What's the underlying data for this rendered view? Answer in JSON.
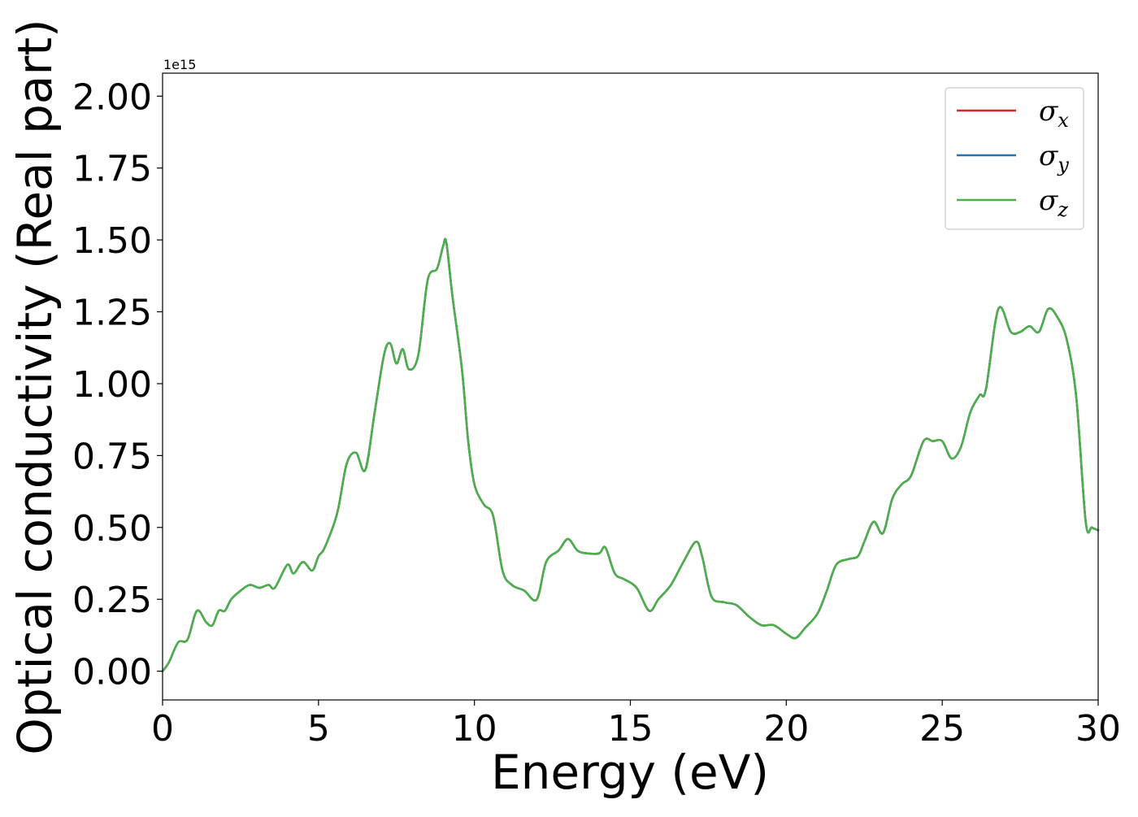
{
  "chart_data": {
    "type": "line",
    "title": "",
    "xlabel": "Energy (eV)",
    "ylabel": "Optical conductivity (Real part)",
    "y_offset_label": "1e15",
    "xlim": [
      0,
      30
    ],
    "ylim": [
      -0.1,
      2.08
    ],
    "x_ticks": [
      0,
      5,
      10,
      15,
      20,
      25,
      30
    ],
    "x_tick_labels": [
      "0",
      "5",
      "10",
      "15",
      "20",
      "25",
      "30"
    ],
    "y_ticks": [
      0,
      0.25,
      0.5,
      0.75,
      1.0,
      1.25,
      1.5,
      1.75,
      2.0
    ],
    "y_tick_labels": [
      "0.00",
      "0.25",
      "0.50",
      "0.75",
      "1.00",
      "1.25",
      "1.50",
      "1.75",
      "2.00"
    ],
    "grid": false,
    "legend_position": "top-right",
    "x": [
      0,
      0.2,
      0.5,
      0.8,
      1.1,
      1.4,
      1.6,
      1.8,
      2.0,
      2.2,
      2.5,
      2.8,
      3.1,
      3.4,
      3.6,
      4.0,
      4.2,
      4.5,
      4.8,
      5.0,
      5.2,
      5.6,
      5.9,
      6.2,
      6.5,
      6.8,
      7.1,
      7.3,
      7.5,
      7.7,
      7.9,
      8.2,
      8.5,
      8.8,
      9.0,
      9.1,
      9.3,
      9.6,
      9.8,
      10.0,
      10.3,
      10.6,
      10.9,
      11.2,
      11.6,
      12.0,
      12.3,
      12.7,
      13.0,
      13.3,
      13.6,
      14.0,
      14.2,
      14.5,
      14.8,
      15.2,
      15.6,
      15.9,
      16.3,
      16.7,
      17.1,
      17.3,
      17.6,
      18.0,
      18.4,
      18.8,
      19.2,
      19.6,
      20.0,
      20.3,
      20.6,
      21.0,
      21.3,
      21.6,
      22.0,
      22.3,
      22.5,
      22.8,
      23.1,
      23.4,
      23.7,
      24.0,
      24.4,
      24.7,
      25.0,
      25.3,
      25.6,
      25.9,
      26.2,
      26.4,
      26.8,
      27.2,
      27.5,
      27.8,
      28.1,
      28.4,
      28.7,
      29.0,
      29.3,
      29.6,
      29.8,
      30.0
    ],
    "series": [
      {
        "name": "σ_x",
        "color": "#d62728",
        "values": [
          0.0,
          0.03,
          0.1,
          0.11,
          0.21,
          0.17,
          0.16,
          0.21,
          0.21,
          0.25,
          0.28,
          0.3,
          0.29,
          0.3,
          0.29,
          0.37,
          0.34,
          0.38,
          0.35,
          0.4,
          0.43,
          0.55,
          0.72,
          0.76,
          0.7,
          0.9,
          1.1,
          1.14,
          1.07,
          1.12,
          1.05,
          1.1,
          1.36,
          1.4,
          1.48,
          1.49,
          1.3,
          1.05,
          0.8,
          0.65,
          0.58,
          0.54,
          0.35,
          0.3,
          0.28,
          0.25,
          0.38,
          0.42,
          0.46,
          0.42,
          0.41,
          0.41,
          0.43,
          0.34,
          0.32,
          0.29,
          0.21,
          0.25,
          0.3,
          0.38,
          0.45,
          0.4,
          0.26,
          0.24,
          0.23,
          0.19,
          0.16,
          0.16,
          0.13,
          0.115,
          0.15,
          0.2,
          0.28,
          0.37,
          0.39,
          0.4,
          0.45,
          0.52,
          0.48,
          0.6,
          0.65,
          0.68,
          0.8,
          0.8,
          0.8,
          0.74,
          0.78,
          0.9,
          0.96,
          0.98,
          1.26,
          1.18,
          1.18,
          1.2,
          1.18,
          1.26,
          1.23,
          1.15,
          0.95,
          0.52,
          0.5,
          0.49
        ]
      },
      {
        "name": "σ_y",
        "color": "#1f77b4",
        "values": [
          0.0,
          0.03,
          0.1,
          0.11,
          0.21,
          0.17,
          0.16,
          0.21,
          0.21,
          0.25,
          0.28,
          0.3,
          0.29,
          0.3,
          0.29,
          0.37,
          0.34,
          0.38,
          0.35,
          0.4,
          0.43,
          0.55,
          0.72,
          0.76,
          0.7,
          0.9,
          1.1,
          1.14,
          1.07,
          1.12,
          1.05,
          1.1,
          1.36,
          1.4,
          1.48,
          1.49,
          1.3,
          1.05,
          0.8,
          0.65,
          0.58,
          0.54,
          0.35,
          0.3,
          0.28,
          0.25,
          0.38,
          0.42,
          0.46,
          0.42,
          0.41,
          0.41,
          0.43,
          0.34,
          0.32,
          0.29,
          0.21,
          0.25,
          0.3,
          0.38,
          0.45,
          0.4,
          0.26,
          0.24,
          0.23,
          0.19,
          0.16,
          0.16,
          0.13,
          0.115,
          0.15,
          0.2,
          0.28,
          0.37,
          0.39,
          0.4,
          0.45,
          0.52,
          0.48,
          0.6,
          0.65,
          0.68,
          0.8,
          0.8,
          0.8,
          0.74,
          0.78,
          0.9,
          0.96,
          0.98,
          1.26,
          1.18,
          1.18,
          1.2,
          1.18,
          1.26,
          1.23,
          1.15,
          0.95,
          0.52,
          0.5,
          0.49
        ]
      },
      {
        "name": "σ_z",
        "color": "#4daf4a",
        "values": [
          0.0,
          0.03,
          0.1,
          0.11,
          0.21,
          0.17,
          0.16,
          0.21,
          0.21,
          0.25,
          0.28,
          0.3,
          0.29,
          0.3,
          0.29,
          0.37,
          0.34,
          0.38,
          0.35,
          0.4,
          0.43,
          0.55,
          0.72,
          0.76,
          0.7,
          0.9,
          1.1,
          1.14,
          1.07,
          1.12,
          1.05,
          1.1,
          1.36,
          1.4,
          1.48,
          1.49,
          1.3,
          1.05,
          0.8,
          0.65,
          0.58,
          0.54,
          0.35,
          0.3,
          0.28,
          0.25,
          0.38,
          0.42,
          0.46,
          0.42,
          0.41,
          0.41,
          0.43,
          0.34,
          0.32,
          0.29,
          0.21,
          0.25,
          0.3,
          0.38,
          0.45,
          0.4,
          0.26,
          0.24,
          0.23,
          0.19,
          0.16,
          0.16,
          0.13,
          0.115,
          0.15,
          0.2,
          0.28,
          0.37,
          0.39,
          0.4,
          0.45,
          0.52,
          0.48,
          0.6,
          0.65,
          0.68,
          0.8,
          0.8,
          0.8,
          0.74,
          0.78,
          0.9,
          0.96,
          0.98,
          1.26,
          1.18,
          1.18,
          1.2,
          1.18,
          1.26,
          1.23,
          1.15,
          0.95,
          0.52,
          0.5,
          0.49
        ]
      }
    ],
    "legend": [
      {
        "symbol": "σ",
        "subscript": "x",
        "color": "#d62728"
      },
      {
        "symbol": "σ",
        "subscript": "y",
        "color": "#1f77b4"
      },
      {
        "symbol": "σ",
        "subscript": "z",
        "color": "#4daf4a"
      }
    ]
  }
}
